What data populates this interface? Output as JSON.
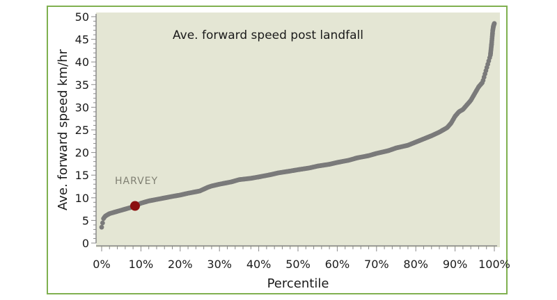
{
  "chart_data": {
    "type": "scatter",
    "title": "Ave. forward speed post landfall",
    "xlabel": "Percentile",
    "ylabel": "Ave. forward speed km/hr",
    "xlim": [
      0,
      100
    ],
    "ylim": [
      0,
      50
    ],
    "x_ticks": [
      0,
      10,
      20,
      30,
      40,
      50,
      60,
      70,
      80,
      90,
      100
    ],
    "x_tick_labels": [
      "0%",
      "10%",
      "20%",
      "30%",
      "40%",
      "50%",
      "60%",
      "70%",
      "80%",
      "90%",
      "100%"
    ],
    "y_ticks": [
      0,
      5,
      10,
      15,
      20,
      25,
      30,
      35,
      40,
      45,
      50
    ],
    "y_tick_labels": [
      "0",
      "5",
      "10",
      "15",
      "20",
      "25",
      "30",
      "35",
      "40",
      "45",
      "50"
    ],
    "grid": false,
    "colors": {
      "plot_background": "#e4e6d4",
      "points": "#7a7a7a",
      "highlight": "#8b1010",
      "frame": "#7fb04f"
    },
    "series": [
      {
        "x": [
          0,
          0.5,
          1,
          2,
          4,
          6,
          8,
          10,
          12,
          15,
          18,
          20,
          22,
          25,
          27,
          28,
          30,
          33,
          35,
          38,
          40,
          43,
          45,
          48,
          50,
          53,
          55,
          58,
          60,
          63,
          65,
          68,
          70,
          73,
          75,
          78,
          80,
          82,
          84,
          86,
          87,
          88,
          89,
          90,
          91,
          92,
          93,
          94,
          95,
          96,
          97,
          97.5,
          98,
          98.5,
          99,
          99.3,
          99.6,
          99.8,
          100
        ],
        "y": [
          3.5,
          5.5,
          6,
          6.5,
          7,
          7.5,
          8,
          8.8,
          9.3,
          9.8,
          10.3,
          10.6,
          11,
          11.5,
          12.3,
          12.6,
          13,
          13.5,
          14,
          14.3,
          14.6,
          15.1,
          15.5,
          15.9,
          16.2,
          16.6,
          17,
          17.4,
          17.8,
          18.3,
          18.8,
          19.3,
          19.8,
          20.4,
          21,
          21.6,
          22.3,
          23,
          23.7,
          24.5,
          25,
          25.5,
          26.5,
          28,
          29,
          29.5,
          30.5,
          31.5,
          33,
          34.5,
          35.5,
          37,
          38.5,
          40,
          41.5,
          44,
          47,
          48,
          48.5
        ]
      }
    ],
    "annotations": [
      {
        "text": "HARVEY",
        "x": 8.5,
        "y": 8.2
      }
    ]
  }
}
